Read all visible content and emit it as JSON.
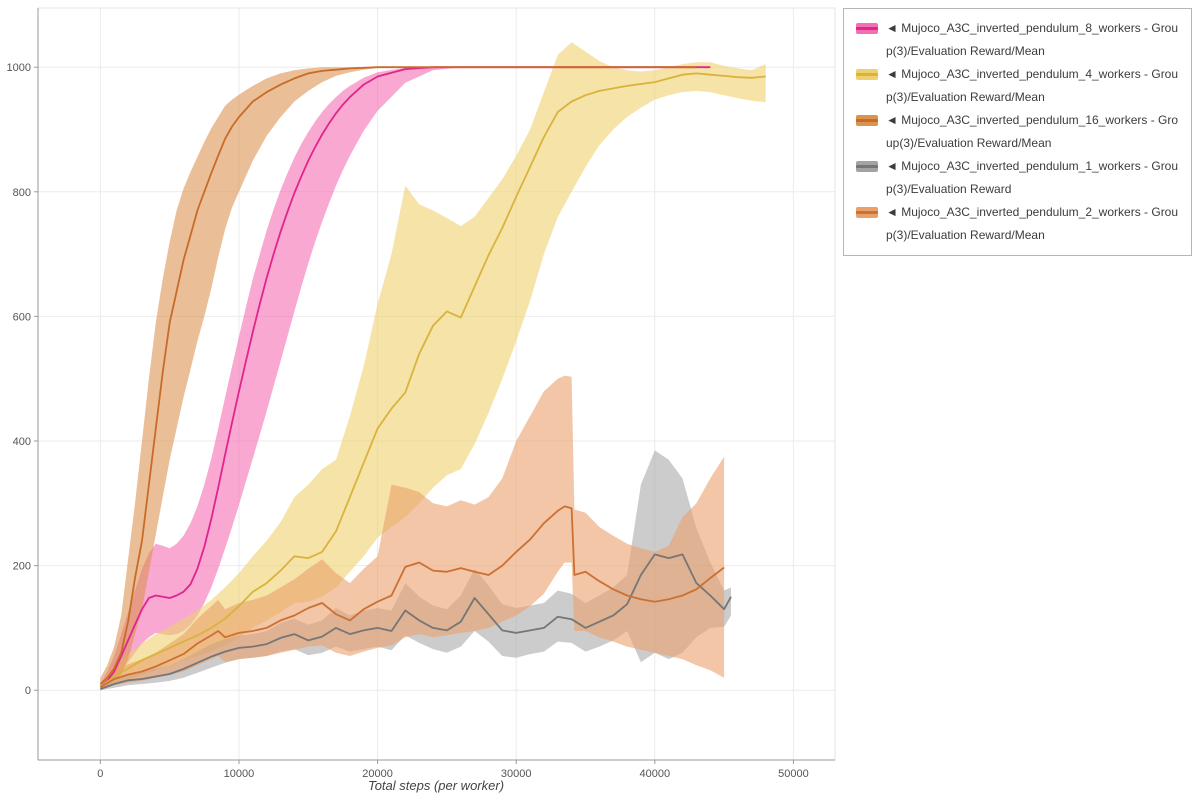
{
  "chart_data": {
    "type": "line",
    "title": "",
    "xlabel": "Total steps (per worker)",
    "ylabel": "",
    "xlim": [
      -4500,
      53000
    ],
    "ylim": [
      -112,
      1095
    ],
    "xticks": [
      0,
      10000,
      20000,
      30000,
      40000,
      50000
    ],
    "yticks": [
      0,
      200,
      400,
      600,
      800,
      1000
    ],
    "grid": true,
    "legend_position": "outside-top-right",
    "legend_prefix_glyph": "◄",
    "series": [
      {
        "id": "pendulum-8-workers",
        "name": "Mujoco_A3C_inverted_pendulum_8_workers - Group(3)/Evaluation Reward/Mean",
        "color": "#e0258c",
        "band_color": "#f46eb2",
        "band_opacity": 0.6,
        "x": [
          0,
          500,
          1000,
          1500,
          2000,
          2500,
          3000,
          3500,
          4000,
          4500,
          5000,
          5500,
          6000,
          6500,
          7000,
          7500,
          8000,
          8500,
          9000,
          9500,
          10000,
          10500,
          11000,
          11500,
          12000,
          12500,
          13000,
          13500,
          14000,
          14500,
          15000,
          15500,
          16000,
          16500,
          17000,
          17500,
          18000,
          19000,
          20000,
          22000,
          24000,
          26000,
          28000,
          30000,
          32000,
          34000,
          36000,
          38000,
          40000,
          42000,
          44000
        ],
        "mean": [
          5,
          15,
          30,
          55,
          80,
          105,
          130,
          148,
          152,
          150,
          148,
          152,
          158,
          170,
          195,
          230,
          275,
          325,
          378,
          430,
          480,
          528,
          575,
          620,
          662,
          700,
          736,
          768,
          798,
          825,
          850,
          872,
          892,
          910,
          926,
          940,
          952,
          972,
          985,
          997,
          1000,
          1000,
          1000,
          1000,
          1000,
          1000,
          1000,
          1000,
          1000,
          1000,
          1000
        ],
        "lo": [
          0,
          5,
          15,
          30,
          45,
          60,
          75,
          85,
          92,
          90,
          88,
          90,
          95,
          105,
          120,
          140,
          165,
          195,
          228,
          262,
          298,
          335,
          372,
          410,
          448,
          488,
          528,
          568,
          608,
          648,
          685,
          720,
          752,
          782,
          810,
          835,
          858,
          898,
          930,
          975,
          995,
          1000,
          1000,
          1000,
          1000,
          1000,
          1000,
          1000,
          1000,
          1000,
          1000
        ],
        "hi": [
          10,
          30,
          55,
          90,
          125,
          160,
          195,
          220,
          235,
          232,
          228,
          235,
          248,
          268,
          295,
          330,
          372,
          420,
          470,
          520,
          568,
          615,
          660,
          700,
          738,
          772,
          803,
          830,
          855,
          877,
          896,
          913,
          928,
          941,
          952,
          962,
          970,
          983,
          992,
          999,
          1000,
          1000,
          1000,
          1000,
          1000,
          1000,
          1000,
          1000,
          1000,
          1000,
          1000
        ]
      },
      {
        "id": "pendulum-4-workers",
        "name": "Mujoco_A3C_inverted_pendulum_4_workers - Group(3)/Evaluation Reward/Mean",
        "color": "#d9b33c",
        "band_color": "#eed06e",
        "band_opacity": 0.6,
        "x": [
          0,
          1000,
          2000,
          3000,
          4000,
          5000,
          6000,
          7000,
          8000,
          9000,
          10000,
          11000,
          12000,
          13000,
          14000,
          15000,
          16000,
          17000,
          18000,
          19000,
          20000,
          21000,
          22000,
          23000,
          24000,
          25000,
          26000,
          27000,
          28000,
          29000,
          30000,
          31000,
          32000,
          33000,
          34000,
          35000,
          36000,
          37000,
          38000,
          39000,
          40000,
          41000,
          42000,
          43000,
          44000,
          45000,
          46000,
          47000,
          48000
        ],
        "mean": [
          5,
          22,
          35,
          48,
          58,
          68,
          78,
          88,
          100,
          115,
          135,
          158,
          172,
          192,
          215,
          212,
          222,
          255,
          310,
          365,
          420,
          452,
          478,
          540,
          585,
          608,
          598,
          648,
          698,
          742,
          792,
          840,
          888,
          928,
          945,
          955,
          962,
          966,
          970,
          973,
          976,
          982,
          988,
          990,
          988,
          986,
          984,
          983,
          985
        ],
        "lo": [
          0,
          10,
          18,
          25,
          32,
          40,
          48,
          55,
          62,
          72,
          85,
          100,
          112,
          125,
          140,
          142,
          150,
          165,
          190,
          215,
          245,
          262,
          278,
          300,
          325,
          345,
          355,
          395,
          445,
          500,
          560,
          625,
          700,
          760,
          800,
          840,
          875,
          900,
          920,
          935,
          948,
          955,
          960,
          962,
          960,
          955,
          950,
          946,
          944
        ],
        "hi": [
          12,
          38,
          58,
          75,
          90,
          102,
          115,
          128,
          145,
          165,
          188,
          215,
          240,
          270,
          310,
          330,
          355,
          370,
          440,
          520,
          620,
          700,
          810,
          780,
          770,
          758,
          745,
          760,
          790,
          820,
          858,
          900,
          960,
          1020,
          1040,
          1025,
          1010,
          1000,
          995,
          993,
          995,
          1000,
          1005,
          1008,
          1008,
          1002,
          998,
          995,
          1005
        ]
      },
      {
        "id": "pendulum-16-workers",
        "name": "Mujoco_A3C_inverted_pendulum_16_workers - Group(3)/Evaluation Reward/Mean",
        "color": "#c96b28",
        "band_color": "#dc9350",
        "band_opacity": 0.6,
        "x": [
          0,
          500,
          1000,
          1500,
          2000,
          2500,
          3000,
          3500,
          4000,
          4500,
          5000,
          5500,
          6000,
          6500,
          7000,
          7500,
          8000,
          8500,
          9000,
          9500,
          10000,
          11000,
          12000,
          13000,
          14000,
          15000,
          16000,
          17000,
          18000,
          19000,
          20000,
          22000,
          24000,
          26000,
          28000,
          30000,
          32000,
          34000,
          36000,
          38000,
          40000,
          42000,
          43000
        ],
        "mean": [
          10,
          20,
          35,
          60,
          110,
          180,
          240,
          330,
          420,
          510,
          590,
          640,
          690,
          730,
          770,
          800,
          830,
          858,
          885,
          905,
          920,
          945,
          960,
          972,
          982,
          990,
          994,
          996,
          998,
          999,
          1000,
          1000,
          1000,
          1000,
          1000,
          1000,
          1000,
          1000,
          1000,
          1000,
          1000,
          1000,
          1000
        ],
        "lo": [
          5,
          10,
          15,
          25,
          50,
          90,
          130,
          190,
          250,
          310,
          370,
          420,
          470,
          515,
          560,
          600,
          645,
          695,
          740,
          775,
          800,
          850,
          890,
          920,
          945,
          962,
          976,
          986,
          992,
          996,
          999,
          1000,
          1000,
          1000,
          1000,
          1000,
          1000,
          1000,
          1000,
          1000,
          1000,
          1000,
          1000
        ],
        "hi": [
          20,
          40,
          70,
          120,
          210,
          300,
          400,
          500,
          590,
          660,
          720,
          770,
          805,
          832,
          856,
          880,
          902,
          920,
          938,
          948,
          956,
          970,
          982,
          990,
          995,
          998,
          1000,
          1000,
          1000,
          1000,
          1000,
          1000,
          1000,
          1000,
          1000,
          1000,
          1000,
          1000,
          1000,
          1000,
          1000,
          1000,
          1000
        ]
      },
      {
        "id": "pendulum-1-workers",
        "name": "Mujoco_A3C_inverted_pendulum_1_workers - Group(3)/Evaluation Reward",
        "color": "#767676",
        "band_color": "#a3a3a3",
        "band_opacity": 0.55,
        "x": [
          0,
          1000,
          2000,
          3000,
          4000,
          5000,
          6000,
          7000,
          8000,
          9000,
          10000,
          11000,
          12000,
          13000,
          14000,
          15000,
          16000,
          17000,
          18000,
          19000,
          20000,
          21000,
          22000,
          23000,
          24000,
          25000,
          26000,
          27000,
          28000,
          29000,
          30000,
          31000,
          32000,
          33000,
          34000,
          35000,
          36000,
          37000,
          38000,
          39000,
          40000,
          41000,
          42000,
          43000,
          44000,
          45000,
          45500
        ],
        "mean": [
          2,
          10,
          16,
          18,
          22,
          26,
          34,
          44,
          54,
          62,
          68,
          70,
          74,
          84,
          90,
          80,
          86,
          100,
          90,
          96,
          100,
          95,
          128,
          112,
          100,
          96,
          110,
          148,
          122,
          96,
          92,
          96,
          100,
          118,
          114,
          100,
          110,
          120,
          138,
          185,
          218,
          212,
          218,
          172,
          152,
          130,
          150
        ],
        "lo": [
          0,
          4,
          8,
          10,
          12,
          15,
          20,
          28,
          36,
          44,
          50,
          52,
          55,
          62,
          66,
          56,
          60,
          70,
          62,
          66,
          70,
          64,
          88,
          76,
          66,
          60,
          70,
          95,
          78,
          55,
          52,
          58,
          62,
          78,
          76,
          62,
          70,
          80,
          95,
          45,
          60,
          50,
          60,
          85,
          100,
          102,
          120
        ],
        "hi": [
          5,
          18,
          26,
          30,
          35,
          40,
          50,
          62,
          74,
          82,
          88,
          90,
          95,
          108,
          115,
          105,
          112,
          132,
          120,
          128,
          132,
          128,
          172,
          150,
          136,
          130,
          152,
          195,
          168,
          138,
          132,
          136,
          140,
          160,
          155,
          140,
          152,
          165,
          185,
          330,
          385,
          370,
          340,
          260,
          205,
          160,
          165
        ]
      },
      {
        "id": "pendulum-2-workers",
        "name": "Mujoco_A3C_inverted_pendulum_2_workers - Group(3)/Evaluation Reward/Mean",
        "color": "#cc7033",
        "band_color": "#e9a06b",
        "band_opacity": 0.6,
        "x": [
          0,
          1000,
          2000,
          3000,
          4000,
          5000,
          6000,
          7000,
          8000,
          8500,
          9000,
          10000,
          11000,
          12000,
          13000,
          14000,
          15000,
          16000,
          17000,
          18000,
          19000,
          20000,
          21000,
          22000,
          23000,
          24000,
          25000,
          26000,
          27000,
          28000,
          29000,
          30000,
          31000,
          32000,
          33000,
          33500,
          34000,
          34200,
          35000,
          36000,
          37000,
          38000,
          39000,
          40000,
          41000,
          42000,
          43000,
          44000,
          45000
        ],
        "mean": [
          5,
          18,
          25,
          30,
          38,
          48,
          58,
          75,
          88,
          95,
          85,
          92,
          95,
          100,
          112,
          120,
          132,
          140,
          122,
          112,
          130,
          142,
          152,
          198,
          205,
          192,
          190,
          196,
          190,
          185,
          200,
          222,
          242,
          268,
          288,
          295,
          292,
          185,
          190,
          175,
          162,
          152,
          146,
          142,
          146,
          152,
          162,
          180,
          197
        ],
        "lo": [
          0,
          8,
          12,
          15,
          20,
          25,
          30,
          40,
          50,
          55,
          45,
          50,
          52,
          55,
          60,
          65,
          70,
          72,
          60,
          55,
          62,
          68,
          72,
          85,
          90,
          85,
          88,
          92,
          95,
          100,
          110,
          120,
          135,
          155,
          190,
          205,
          205,
          95,
          95,
          85,
          78,
          70,
          65,
          60,
          55,
          50,
          40,
          32,
          20
        ],
        "hi": [
          12,
          30,
          42,
          50,
          60,
          75,
          90,
          115,
          135,
          145,
          130,
          140,
          145,
          152,
          165,
          178,
          195,
          210,
          188,
          172,
          195,
          215,
          330,
          325,
          318,
          300,
          295,
          305,
          298,
          310,
          340,
          400,
          440,
          480,
          500,
          505,
          503,
          290,
          285,
          262,
          248,
          235,
          228,
          222,
          232,
          278,
          300,
          340,
          375
        ]
      }
    ]
  }
}
